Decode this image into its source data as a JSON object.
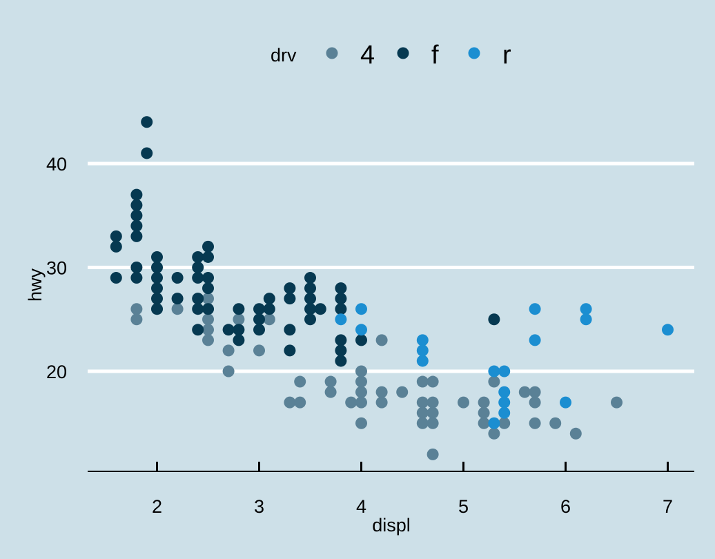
{
  "chart_data": {
    "type": "scatter",
    "title": "",
    "xlabel": "displ",
    "ylabel": "hwy",
    "xlim": [
      1.33,
      7.27
    ],
    "ylim": [
      10.4,
      44.0
    ],
    "x_ticks": [
      2,
      3,
      4,
      5,
      6,
      7
    ],
    "y_ticks": [
      20,
      30,
      40
    ],
    "grid": "horizontal major lines only",
    "background": "#cde0e8",
    "legend": {
      "title": "drv",
      "position": "top",
      "entries": [
        {
          "label": "4",
          "color": "#5a8196"
        },
        {
          "label": "f",
          "color": "#063951"
        },
        {
          "label": "r",
          "color": "#1b8ed1"
        }
      ]
    },
    "series": [
      {
        "name": "4",
        "color": "#5a8196",
        "points": [
          [
            1.8,
            26
          ],
          [
            1.8,
            25
          ],
          [
            2.0,
            26
          ],
          [
            2.2,
            26
          ],
          [
            2.5,
            27
          ],
          [
            2.5,
            26
          ],
          [
            2.5,
            25
          ],
          [
            2.5,
            24
          ],
          [
            2.5,
            23
          ],
          [
            2.7,
            22
          ],
          [
            2.7,
            20
          ],
          [
            2.8,
            25
          ],
          [
            3.0,
            22
          ],
          [
            3.1,
            25
          ],
          [
            3.3,
            17
          ],
          [
            3.4,
            19
          ],
          [
            3.4,
            17
          ],
          [
            3.7,
            19
          ],
          [
            3.7,
            18
          ],
          [
            3.9,
            17
          ],
          [
            4.0,
            20
          ],
          [
            4.0,
            19
          ],
          [
            4.0,
            18
          ],
          [
            4.0,
            17
          ],
          [
            4.0,
            15
          ],
          [
            4.2,
            23
          ],
          [
            4.2,
            18
          ],
          [
            4.2,
            17
          ],
          [
            4.4,
            18
          ],
          [
            4.6,
            19
          ],
          [
            4.6,
            17
          ],
          [
            4.6,
            16
          ],
          [
            4.6,
            15
          ],
          [
            4.7,
            19
          ],
          [
            4.7,
            17
          ],
          [
            4.7,
            16
          ],
          [
            4.7,
            15
          ],
          [
            4.7,
            12
          ],
          [
            5.0,
            17
          ],
          [
            5.2,
            17
          ],
          [
            5.2,
            16
          ],
          [
            5.2,
            15
          ],
          [
            5.3,
            19
          ],
          [
            5.3,
            14
          ],
          [
            5.4,
            15
          ],
          [
            5.6,
            18
          ],
          [
            5.7,
            18
          ],
          [
            5.7,
            17
          ],
          [
            5.7,
            15
          ],
          [
            5.9,
            15
          ],
          [
            6.1,
            14
          ],
          [
            6.5,
            17
          ]
        ]
      },
      {
        "name": "f",
        "color": "#063951",
        "points": [
          [
            1.6,
            33
          ],
          [
            1.6,
            32
          ],
          [
            1.6,
            29
          ],
          [
            1.8,
            37
          ],
          [
            1.8,
            36
          ],
          [
            1.8,
            35
          ],
          [
            1.8,
            34
          ],
          [
            1.8,
            33
          ],
          [
            1.8,
            30
          ],
          [
            1.8,
            29
          ],
          [
            1.9,
            44
          ],
          [
            1.9,
            41
          ],
          [
            2.0,
            31
          ],
          [
            2.0,
            30
          ],
          [
            2.0,
            29
          ],
          [
            2.0,
            28
          ],
          [
            2.0,
            27
          ],
          [
            2.0,
            26
          ],
          [
            2.2,
            29
          ],
          [
            2.2,
            27
          ],
          [
            2.4,
            31
          ],
          [
            2.4,
            30
          ],
          [
            2.4,
            29
          ],
          [
            2.4,
            27
          ],
          [
            2.4,
            26
          ],
          [
            2.4,
            24
          ],
          [
            2.5,
            32
          ],
          [
            2.5,
            31
          ],
          [
            2.5,
            29
          ],
          [
            2.5,
            28
          ],
          [
            2.5,
            26
          ],
          [
            2.7,
            24
          ],
          [
            2.8,
            26
          ],
          [
            2.8,
            24
          ],
          [
            2.8,
            23
          ],
          [
            3.0,
            26
          ],
          [
            3.0,
            25
          ],
          [
            3.0,
            24
          ],
          [
            3.1,
            27
          ],
          [
            3.1,
            26
          ],
          [
            3.3,
            28
          ],
          [
            3.3,
            27
          ],
          [
            3.3,
            24
          ],
          [
            3.3,
            22
          ],
          [
            3.5,
            29
          ],
          [
            3.5,
            28
          ],
          [
            3.5,
            27
          ],
          [
            3.5,
            26
          ],
          [
            3.5,
            25
          ],
          [
            3.6,
            26
          ],
          [
            3.8,
            28
          ],
          [
            3.8,
            27
          ],
          [
            3.8,
            26
          ],
          [
            3.8,
            23
          ],
          [
            3.8,
            22
          ],
          [
            3.8,
            21
          ],
          [
            4.0,
            23
          ],
          [
            5.3,
            25
          ]
        ]
      },
      {
        "name": "r",
        "color": "#1b8ed1",
        "points": [
          [
            3.8,
            25
          ],
          [
            4.0,
            26
          ],
          [
            4.0,
            24
          ],
          [
            4.6,
            23
          ],
          [
            4.6,
            22
          ],
          [
            4.6,
            21
          ],
          [
            5.3,
            20
          ],
          [
            5.3,
            15
          ],
          [
            5.4,
            20
          ],
          [
            5.4,
            18
          ],
          [
            5.4,
            17
          ],
          [
            5.4,
            16
          ],
          [
            5.7,
            26
          ],
          [
            5.7,
            23
          ],
          [
            6.0,
            17
          ],
          [
            6.2,
            26
          ],
          [
            6.2,
            25
          ],
          [
            7.0,
            24
          ]
        ]
      }
    ]
  }
}
